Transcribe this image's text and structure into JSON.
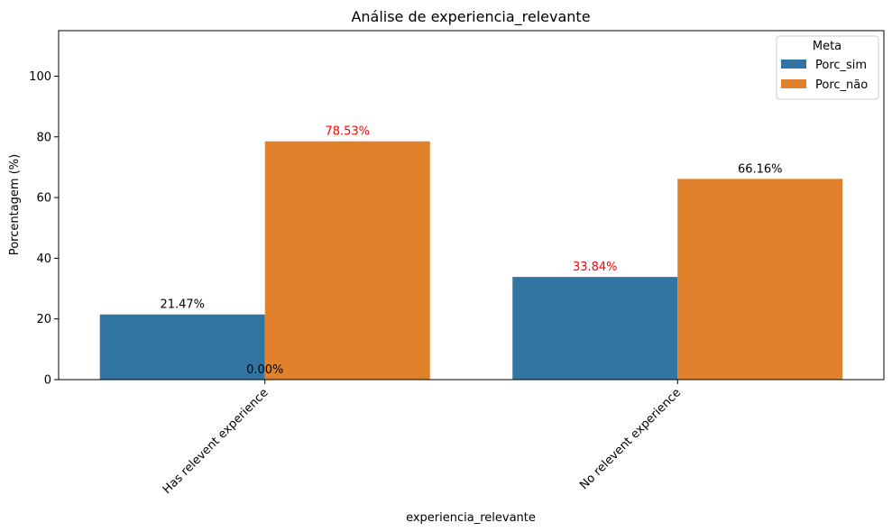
{
  "chart_data": {
    "type": "bar",
    "title": "Análise de experiencia_relevante",
    "xlabel": "experiencia_relevante",
    "ylabel": "Porcentagem (%)",
    "categories": [
      "Has relevent experience",
      "No relevent experience"
    ],
    "yticks": [
      "0",
      "20",
      "40",
      "60",
      "80",
      "100"
    ],
    "ylim": [
      0,
      115
    ],
    "grid": false,
    "legend": {
      "title": "Meta",
      "placement": "top-right"
    },
    "series": [
      {
        "name": "Porc_sim",
        "color": "#3274a1",
        "values": [
          21.47,
          33.84
        ],
        "labels": [
          "21.47%",
          "33.84%"
        ],
        "label_colors": [
          "#000000",
          "#ff0000"
        ]
      },
      {
        "name": "Porc_não",
        "color": "#e1812c",
        "values": [
          78.53,
          66.16
        ],
        "labels": [
          "78.53%",
          "66.16%"
        ],
        "label_colors": [
          "#ff0000",
          "#000000"
        ]
      }
    ],
    "annotations": [
      {
        "text": "0.00%",
        "category": 0,
        "value": 0
      }
    ]
  }
}
